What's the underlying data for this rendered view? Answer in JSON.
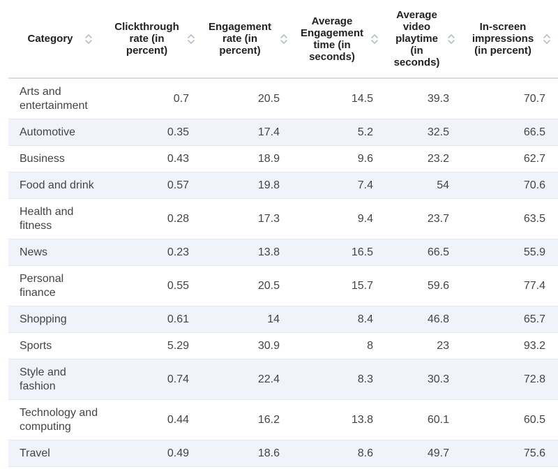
{
  "chart_data": {
    "type": "table",
    "columns": [
      "Category",
      "Clickthrough rate (in percent)",
      "Engagement rate (in percent)",
      "Average Engagement time (in seconds)",
      "Average video playtime (in seconds)",
      "In-screen impressions (in percent)"
    ],
    "rows": [
      {
        "category": "Arts and entertainment",
        "cells": [
          "0.7",
          "20.5",
          "14.5",
          "39.3",
          "70.7"
        ]
      },
      {
        "category": "Automotive",
        "cells": [
          "0.35",
          "17.4",
          "5.2",
          "32.5",
          "66.5"
        ]
      },
      {
        "category": "Business",
        "cells": [
          "0.43",
          "18.9",
          "9.6",
          "23.2",
          "62.7"
        ]
      },
      {
        "category": "Food and drink",
        "cells": [
          "0.57",
          "19.8",
          "7.4",
          "54",
          "70.6"
        ]
      },
      {
        "category": "Health and fitness",
        "cells": [
          "0.28",
          "17.3",
          "9.4",
          "23.7",
          "63.5"
        ]
      },
      {
        "category": "News",
        "cells": [
          "0.23",
          "13.8",
          "16.5",
          "66.5",
          "55.9"
        ]
      },
      {
        "category": "Personal finance",
        "cells": [
          "0.55",
          "20.5",
          "15.7",
          "59.6",
          "77.4"
        ]
      },
      {
        "category": "Shopping",
        "cells": [
          "0.61",
          "14",
          "8.4",
          "46.8",
          "65.7"
        ]
      },
      {
        "category": "Sports",
        "cells": [
          "5.29",
          "30.9",
          "8",
          "23",
          "93.2"
        ]
      },
      {
        "category": "Style and fashion",
        "cells": [
          "0.74",
          "22.4",
          "8.3",
          "30.3",
          "72.8"
        ]
      },
      {
        "category": "Technology and computing",
        "cells": [
          "0.44",
          "16.2",
          "13.8",
          "60.1",
          "60.5"
        ]
      },
      {
        "category": "Travel",
        "cells": [
          "0.49",
          "18.6",
          "8.6",
          "49.7",
          "75.6"
        ]
      }
    ]
  },
  "style": {
    "stripe_color": "#f0f4fa",
    "divider_color": "#e4e8ee",
    "sort_icon_color": "#b8bec8",
    "sort_icon": "sort-up-down-icon"
  }
}
